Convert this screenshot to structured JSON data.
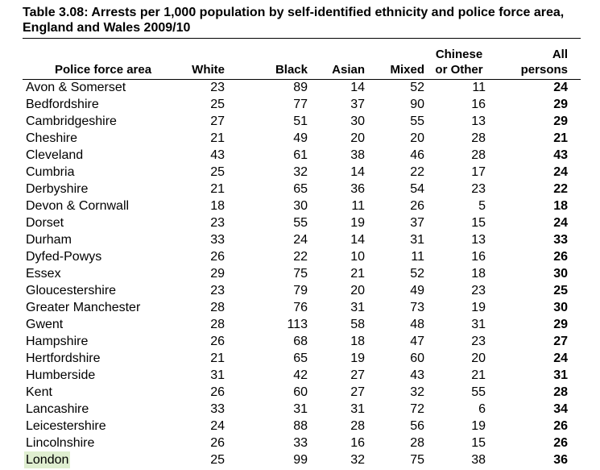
{
  "title": "Table 3.08: Arrests per 1,000 population by self-identified ethnicity and police force area, England and Wales 2009/10",
  "headers": {
    "area": "Police force area",
    "white": "White",
    "black": "Black",
    "asian": "Asian",
    "mixed": "Mixed",
    "other_l1": "Chinese",
    "other_l2": "or Other",
    "all_l1": "All",
    "all_l2": "persons"
  },
  "rows": [
    {
      "area": "Avon & Somerset",
      "white": "23",
      "black": "89",
      "asian": "14",
      "mixed": "52",
      "other": "11",
      "all": "24"
    },
    {
      "area": "Bedfordshire",
      "white": "25",
      "black": "77",
      "asian": "37",
      "mixed": "90",
      "other": "16",
      "all": "29"
    },
    {
      "area": "Cambridgeshire",
      "white": "27",
      "black": "51",
      "asian": "30",
      "mixed": "55",
      "other": "13",
      "all": "29"
    },
    {
      "area": "Cheshire",
      "white": "21",
      "black": "49",
      "asian": "20",
      "mixed": "20",
      "other": "28",
      "all": "21"
    },
    {
      "area": "Cleveland",
      "white": "43",
      "black": "61",
      "asian": "38",
      "mixed": "46",
      "other": "28",
      "all": "43"
    },
    {
      "area": "Cumbria",
      "white": "25",
      "black": "32",
      "asian": "14",
      "mixed": "22",
      "other": "17",
      "all": "24"
    },
    {
      "area": "Derbyshire",
      "white": "21",
      "black": "65",
      "asian": "36",
      "mixed": "54",
      "other": "23",
      "all": "22"
    },
    {
      "area": "Devon & Cornwall",
      "white": "18",
      "black": "30",
      "asian": "11",
      "mixed": "26",
      "other": "5",
      "all": "18"
    },
    {
      "area": "Dorset",
      "white": "23",
      "black": "55",
      "asian": "19",
      "mixed": "37",
      "other": "15",
      "all": "24"
    },
    {
      "area": "Durham",
      "white": "33",
      "black": "24",
      "asian": "14",
      "mixed": "31",
      "other": "13",
      "all": "33"
    },
    {
      "area": "Dyfed-Powys",
      "white": "26",
      "black": "22",
      "asian": "10",
      "mixed": "11",
      "other": "16",
      "all": "26"
    },
    {
      "area": "Essex",
      "white": "29",
      "black": "75",
      "asian": "21",
      "mixed": "52",
      "other": "18",
      "all": "30"
    },
    {
      "area": "Gloucestershire",
      "white": "23",
      "black": "79",
      "asian": "20",
      "mixed": "49",
      "other": "23",
      "all": "25"
    },
    {
      "area": "Greater Manchester",
      "white": "28",
      "black": "76",
      "asian": "31",
      "mixed": "73",
      "other": "19",
      "all": "30"
    },
    {
      "area": "Gwent",
      "white": "28",
      "black": "113",
      "asian": "58",
      "mixed": "48",
      "other": "31",
      "all": "29"
    },
    {
      "area": "Hampshire",
      "white": "26",
      "black": "68",
      "asian": "18",
      "mixed": "47",
      "other": "23",
      "all": "27"
    },
    {
      "area": "Hertfordshire",
      "white": "21",
      "black": "65",
      "asian": "19",
      "mixed": "60",
      "other": "20",
      "all": "24"
    },
    {
      "area": "Humberside",
      "white": "31",
      "black": "42",
      "asian": "27",
      "mixed": "43",
      "other": "21",
      "all": "31"
    },
    {
      "area": "Kent",
      "white": "26",
      "black": "60",
      "asian": "27",
      "mixed": "32",
      "other": "55",
      "all": "28"
    },
    {
      "area": "Lancashire",
      "white": "33",
      "black": "31",
      "asian": "31",
      "mixed": "72",
      "other": "6",
      "all": "34"
    },
    {
      "area": "Leicestershire",
      "white": "24",
      "black": "88",
      "asian": "28",
      "mixed": "56",
      "other": "19",
      "all": "26"
    },
    {
      "area": "Lincolnshire",
      "white": "26",
      "black": "33",
      "asian": "16",
      "mixed": "28",
      "other": "15",
      "all": "26"
    },
    {
      "area": "London",
      "white": "25",
      "black": "99",
      "asian": "32",
      "mixed": "75",
      "other": "38",
      "all": "36",
      "highlight": "#dfeed0"
    }
  ]
}
